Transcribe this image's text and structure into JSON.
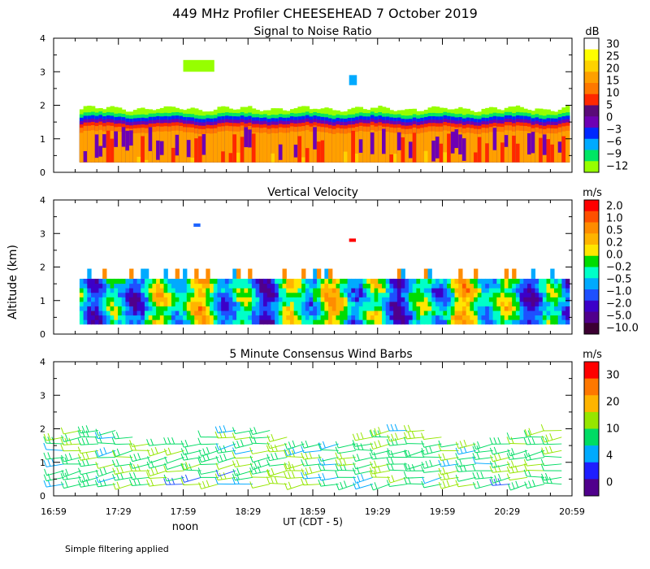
{
  "title": "449 MHz Profiler CHEESEHEAD  7 October 2019",
  "y_axis_label": "Altitude (km)",
  "x_axis_label": "UT  (CDT - 5)",
  "noon_label": "noon",
  "footnote": "Simple filtering applied",
  "chart_data": [
    {
      "type": "heatmap",
      "title": "Signal to Noise Ratio",
      "units": "dB",
      "ylim": [
        0,
        4
      ],
      "y_ticks": [
        "0",
        "1",
        "2",
        "3",
        "4"
      ],
      "x_ticks": [
        "16:59",
        "17:29",
        "17:59",
        "18:29",
        "18:59",
        "19:29",
        "19:59",
        "20:29",
        "20:59"
      ],
      "colorbar": {
        "labels": [
          "30",
          "25",
          "20",
          "15",
          "10",
          "5",
          "0",
          "−3",
          "−6",
          "−9",
          "−12"
        ],
        "colors": [
          "#ffffff",
          "#ffff00",
          "#ffd200",
          "#ffa000",
          "#ff7800",
          "#ff2800",
          "#5a0a78",
          "#6e00b4",
          "#0028ff",
          "#00aaff",
          "#00e664",
          "#96ff00"
        ]
      },
      "layers": [
        {
          "top": 1.9,
          "color": "#96ff00"
        },
        {
          "top": 1.75,
          "color": "#00e664"
        },
        {
          "top": 1.65,
          "color": "#0028ff"
        },
        {
          "top": 1.55,
          "color": "#6e00b4"
        },
        {
          "top": 1.45,
          "color": "#ff2800"
        },
        {
          "top": 1.35,
          "color": "#ff7800"
        },
        {
          "top": 1.2,
          "color": "#ffa000"
        }
      ],
      "echoes": [
        {
          "t0": 0.25,
          "t1": 0.31,
          "z0": 3.0,
          "z1": 3.35,
          "color": "#96ff00"
        },
        {
          "t0": 0.57,
          "t1": 0.585,
          "z0": 2.6,
          "z1": 2.9,
          "color": "#00aaff"
        }
      ]
    },
    {
      "type": "heatmap",
      "title": "Vertical Velocity",
      "units": "m/s",
      "ylim": [
        0,
        4
      ],
      "y_ticks": [
        "0",
        "1",
        "2",
        "3",
        "4"
      ],
      "x_ticks": [
        "16:59",
        "17:29",
        "17:59",
        "18:29",
        "18:59",
        "19:29",
        "19:59",
        "20:29",
        "20:59"
      ],
      "colorbar": {
        "labels": [
          "2.0",
          "1.0",
          "0.5",
          "0.2",
          "0.0",
          "−0.2",
          "−0.5",
          "−1.0",
          "−2.0",
          "−5.0",
          "−10.0"
        ],
        "colors": [
          "#ff0000",
          "#ff5000",
          "#ff8c00",
          "#ffb400",
          "#ffe600",
          "#00dc00",
          "#00ffc8",
          "#00aaff",
          "#1e50ff",
          "#3c00c8",
          "#50008c",
          "#3c0032"
        ]
      },
      "top_km": 1.65,
      "echoes": [
        {
          "t0": 0.27,
          "t1": 0.28,
          "z0": 3.2,
          "z1": 3.3,
          "color": "#1e64ff"
        },
        {
          "t0": 0.57,
          "t1": 0.58,
          "z0": 2.75,
          "z1": 2.85,
          "color": "#ff0000"
        }
      ]
    },
    {
      "type": "scatter",
      "title": "5 Minute Consensus Wind Barbs",
      "units": "m/s",
      "ylim": [
        0,
        4
      ],
      "y_ticks": [
        "0",
        "1",
        "2",
        "3",
        "4"
      ],
      "x_ticks": [
        "16:59",
        "17:29",
        "17:59",
        "18:29",
        "18:59",
        "19:29",
        "19:59",
        "20:29",
        "20:59"
      ],
      "colorbar": {
        "labels": [
          "30",
          "20",
          "10",
          "4",
          "0"
        ],
        "colors": [
          "#ff0000",
          "#ff7800",
          "#ffb400",
          "#96e600",
          "#00dc64",
          "#00aaff",
          "#1e1eff",
          "#50008c"
        ]
      },
      "altitudes_km": [
        0.35,
        0.55,
        0.75,
        0.95,
        1.15,
        1.35,
        1.55,
        1.75,
        1.95
      ],
      "speed_range_ms": [
        4,
        14
      ],
      "direction": "westerly"
    }
  ]
}
